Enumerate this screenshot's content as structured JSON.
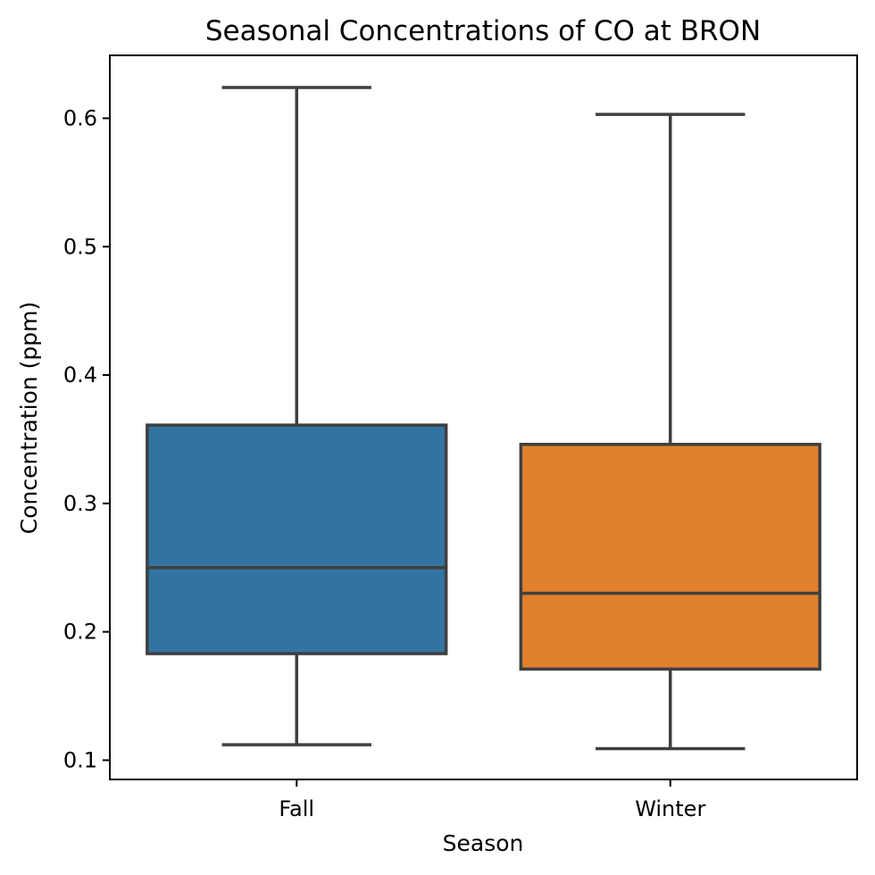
{
  "chart_data": {
    "type": "box",
    "title": "Seasonal Concentrations of CO at BRON",
    "xlabel": "Season",
    "ylabel": "Concentration (ppm)",
    "categories": [
      "Fall",
      "Winter"
    ],
    "ylim": [
      0.085,
      0.649
    ],
    "yticks": [
      "0.1",
      "0.2",
      "0.3",
      "0.4",
      "0.5",
      "0.6"
    ],
    "grid": false,
    "boxes": [
      {
        "category": "Fall",
        "whisker_low": 0.112,
        "q1": 0.183,
        "median": 0.25,
        "q3": 0.361,
        "whisker_high": 0.624,
        "color": "#3274a1"
      },
      {
        "category": "Winter",
        "whisker_low": 0.109,
        "q1": 0.171,
        "median": 0.23,
        "q3": 0.346,
        "whisker_high": 0.603,
        "color": "#e1812c"
      }
    ]
  }
}
